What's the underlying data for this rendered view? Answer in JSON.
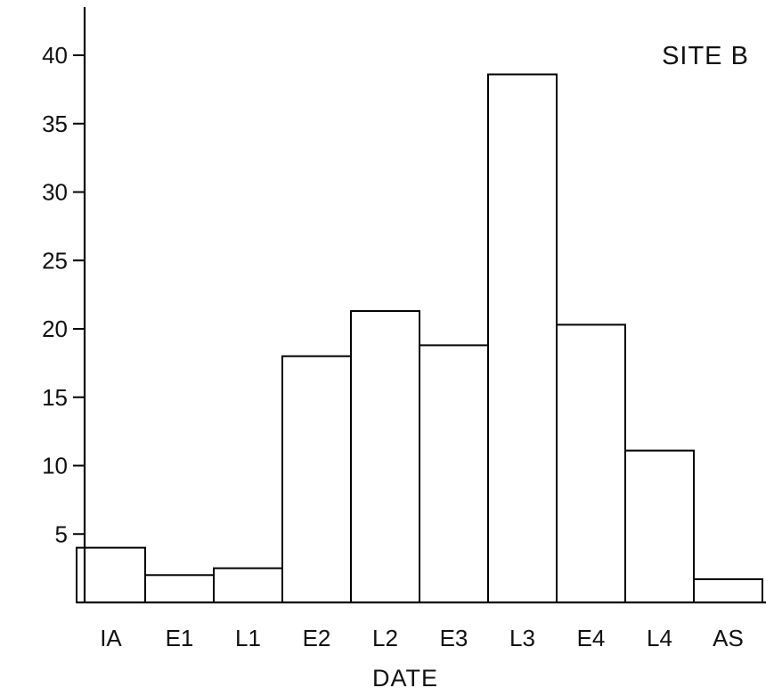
{
  "chart_data": {
    "type": "bar",
    "title": "SITE B",
    "xlabel": "DATE",
    "ylabel": "",
    "categories": [
      "IA",
      "E1",
      "L1",
      "E2",
      "L2",
      "E3",
      "L3",
      "E4",
      "L4",
      "AS"
    ],
    "values": [
      4,
      2,
      2.5,
      18,
      21.3,
      18.8,
      38.6,
      20.3,
      11.1,
      1.7
    ],
    "ylim": [
      0,
      43
    ],
    "yticks": [
      5,
      10,
      15,
      20,
      25,
      30,
      35,
      40
    ],
    "grid": false,
    "legend": "none",
    "colors": {
      "bar_fill": "#ffffff",
      "bar_stroke": "#000000",
      "axis": "#000000"
    }
  }
}
